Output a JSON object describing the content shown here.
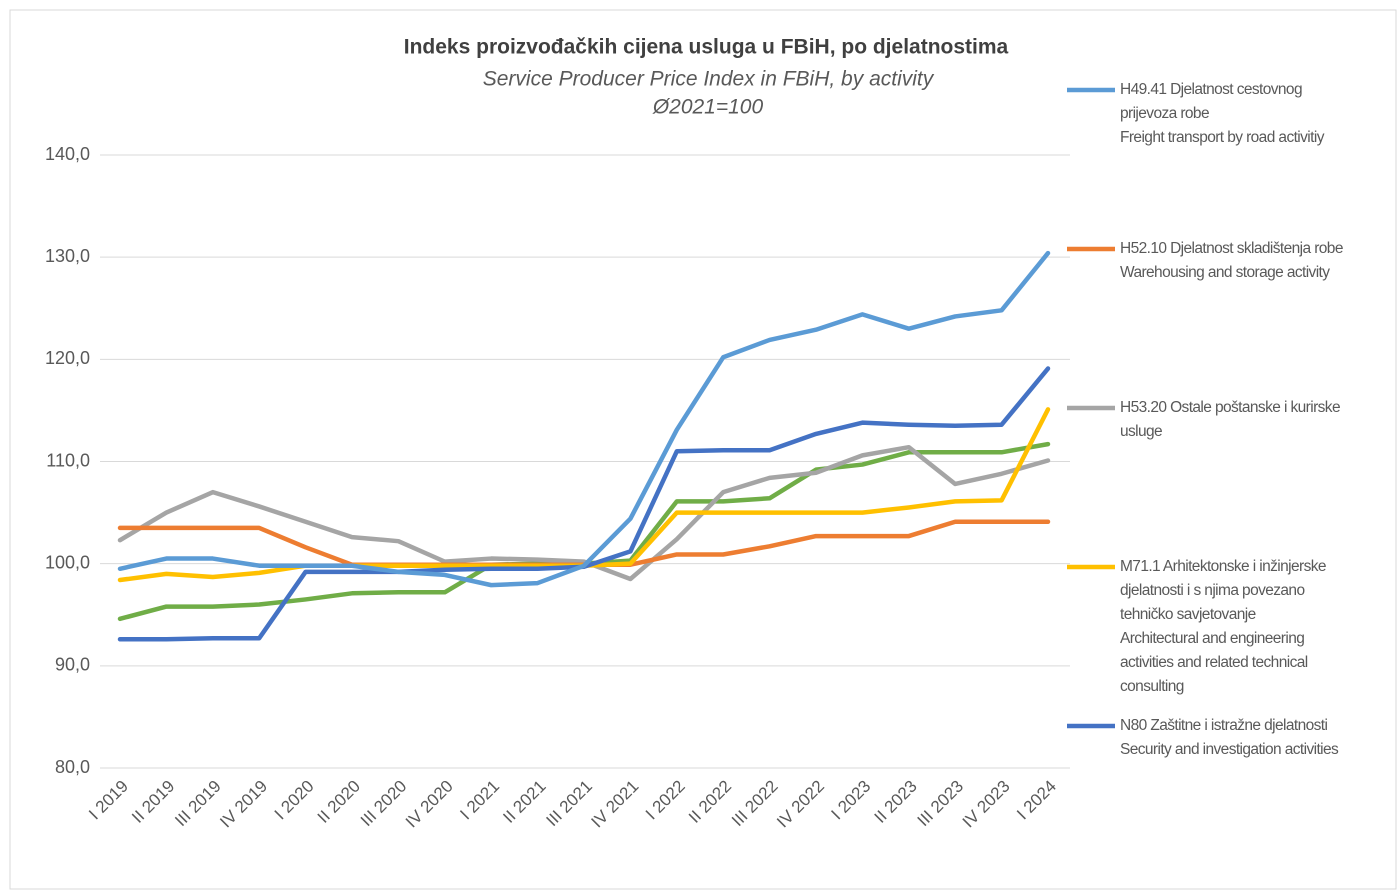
{
  "chart_data": {
    "type": "line",
    "title": "Indeks proizvođačkih cijena usluga u FBiH, po djelatnostima",
    "subtitle": "Service Producer Price Index in FBiH, by activity",
    "annotation": "Ø2021=100",
    "categories": [
      "I 2019",
      "II 2019",
      "III 2019",
      "IV 2019",
      "I 2020",
      "II 2020",
      "III 2020",
      "IV 2020",
      "I 2021",
      "II 2021",
      "III 2021",
      "IV 2021",
      "I 2022",
      "II 2022",
      "III 2022",
      "IV 2022",
      "I 2023",
      "II 2023",
      "III 2023",
      "IV 2023",
      "I 2024"
    ],
    "ylim": [
      80,
      140
    ],
    "yticks": [
      {
        "value": 80,
        "label": "80,0"
      },
      {
        "value": 90,
        "label": "90,0"
      },
      {
        "value": 100,
        "label": "100,0"
      },
      {
        "value": 110,
        "label": "110,0"
      },
      {
        "value": 120,
        "label": "120,0"
      },
      {
        "value": 130,
        "label": "130,0"
      },
      {
        "value": 140,
        "label": "140,0"
      }
    ],
    "grid": true,
    "legend": "right",
    "series": [
      {
        "name": "H49.41 Djelatnost cestovnog prijevoza robe\nFreight transport by road activitiy",
        "color": "#5b9bd5",
        "values": [
          99.5,
          100.5,
          100.5,
          99.8,
          99.8,
          99.8,
          99.2,
          98.9,
          97.9,
          98.1,
          99.8,
          104.4,
          113.1,
          120.2,
          121.9,
          122.9,
          124.4,
          123.0,
          124.2,
          124.8,
          130.4
        ]
      },
      {
        "name": "H52.10 Djelatnost skladištenja robe\nWarehousing and storage activity",
        "color": "#ed7d31",
        "values": [
          103.5,
          103.5,
          103.5,
          103.5,
          101.6,
          99.9,
          99.9,
          99.9,
          99.9,
          99.9,
          99.9,
          99.9,
          100.9,
          100.9,
          101.7,
          102.7,
          102.7,
          102.7,
          104.1,
          104.1,
          104.1
        ]
      },
      {
        "name": "H53.20 Ostale poštanske i kurirske usluge",
        "color": "#a5a5a5",
        "values": [
          102.3,
          105.0,
          107.0,
          105.6,
          104.1,
          102.6,
          102.2,
          100.2,
          100.5,
          100.4,
          100.2,
          98.5,
          102.4,
          107.0,
          108.4,
          108.9,
          110.6,
          111.4,
          107.8,
          108.8,
          110.1
        ]
      },
      {
        "name": "M71.1 Arhitektonske i inžinjerske djelatnosti i s njima povezano tehničko savjetovanje\nArchitectural and engineering activities and related technical consulting",
        "color": "#ffc000",
        "values": [
          98.4,
          99.0,
          98.7,
          99.1,
          99.8,
          99.8,
          99.8,
          99.8,
          99.8,
          99.8,
          99.8,
          100.0,
          105.0,
          105.0,
          105.0,
          105.0,
          105.0,
          105.5,
          106.1,
          106.2,
          115.1
        ]
      },
      {
        "name": "N80 Zaštitne i istražne djelatnosti\nSecurity and investigation activities",
        "color": "#4472c4",
        "values": [
          92.6,
          92.6,
          92.7,
          92.7,
          99.2,
          99.2,
          99.2,
          99.4,
          99.5,
          99.5,
          99.7,
          101.2,
          111.0,
          111.1,
          111.1,
          112.7,
          113.8,
          113.6,
          113.5,
          113.6,
          119.1
        ]
      },
      {
        "color": "#70ad47",
        "values": [
          94.6,
          95.8,
          95.8,
          96.0,
          96.5,
          97.1,
          97.2,
          97.2,
          99.9,
          100.0,
          100.0,
          100.3,
          106.1,
          106.1,
          106.4,
          109.2,
          109.7,
          110.9,
          110.9,
          110.9,
          111.7
        ]
      }
    ]
  }
}
